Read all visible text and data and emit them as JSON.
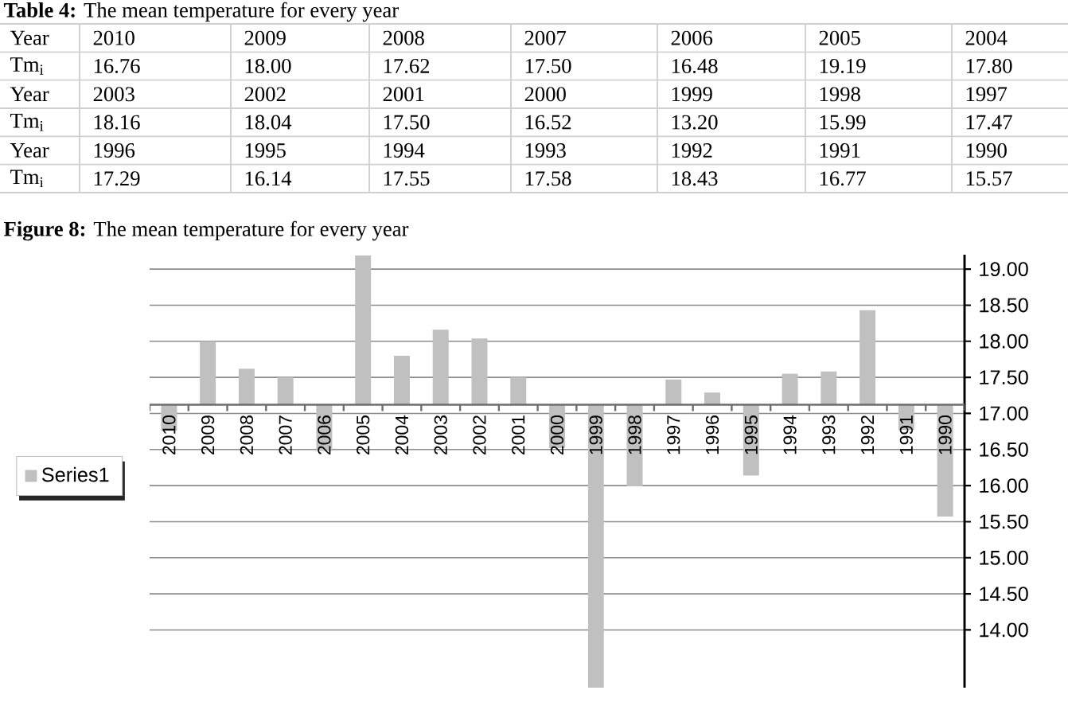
{
  "chart_data": {
    "type": "bar",
    "title": "**Figure 8:** The mean temperature for every year",
    "categories": [
      "2010",
      "2009",
      "2008",
      "2007",
      "2006",
      "2005",
      "2004",
      "2003",
      "2002",
      "2001",
      "2000",
      "1999",
      "1998",
      "1997",
      "1996",
      "1995",
      "1994",
      "1993",
      "1992",
      "1991",
      "1990"
    ],
    "series": [
      {
        "name": "Series1",
        "color": "#c0c0c0",
        "base": [
          17.12,
          17.12,
          17.12,
          17.12,
          17.12,
          17.12,
          17.12,
          17.12,
          17.12,
          17.12,
          17.12,
          17.12,
          17.12,
          17.12,
          17.12,
          17.12,
          17.12,
          17.12,
          17.12,
          17.12,
          17.12
        ],
        "values": [
          -0.36,
          0.88,
          0.5,
          0.38,
          -0.64,
          2.07,
          0.68,
          1.04,
          0.92,
          0.38,
          -0.6,
          -3.92,
          -1.13,
          0.35,
          0.17,
          -0.98,
          0.43,
          0.46,
          1.31,
          -0.35,
          -1.55
        ]
      }
    ],
    "ylim": [
      13.2,
      19.2
    ],
    "yticks": [
      {
        "value": 14,
        "label": "14.00"
      },
      {
        "value": 14.5,
        "label": "14.50"
      },
      {
        "value": 15,
        "label": "15.00"
      },
      {
        "value": 15.5,
        "label": "15.50"
      },
      {
        "value": 16,
        "label": "16.00"
      },
      {
        "value": 16.5,
        "label": "16.50"
      },
      {
        "value": 17,
        "label": "17.00"
      },
      {
        "value": 17.5,
        "label": "17.50"
      },
      {
        "value": 18,
        "label": "18.00"
      },
      {
        "value": 18.5,
        "label": "18.50"
      },
      {
        "value": 19,
        "label": "19.00"
      }
    ],
    "grid": "y",
    "legend": "left",
    "annotations": [
      "**Table 4:** The mean temperature for every year",
      "Year",
      "2010",
      "2009",
      "2008",
      "2007",
      "2006",
      "2005",
      "2004",
      "Tm$_{i}$",
      "16.76",
      "18.00",
      "17.62",
      "17.50",
      "16.48",
      "19.19",
      "17.80",
      "Year",
      "2003",
      "2002",
      "2001",
      "2000",
      "1999",
      "1998",
      "1997",
      "Tm$_{i}$",
      "18.16",
      "18.04",
      "17.50",
      "16.52",
      "13.20",
      "15.99",
      "17.47",
      "Year",
      "1996",
      "1995",
      "1994",
      "1993",
      "1992",
      "1991",
      "1990",
      "Tm$_{i}$",
      "17.29",
      "16.14",
      "17.55",
      "17.58",
      "18.43",
      "16.77",
      "15.57"
    ]
  }
}
